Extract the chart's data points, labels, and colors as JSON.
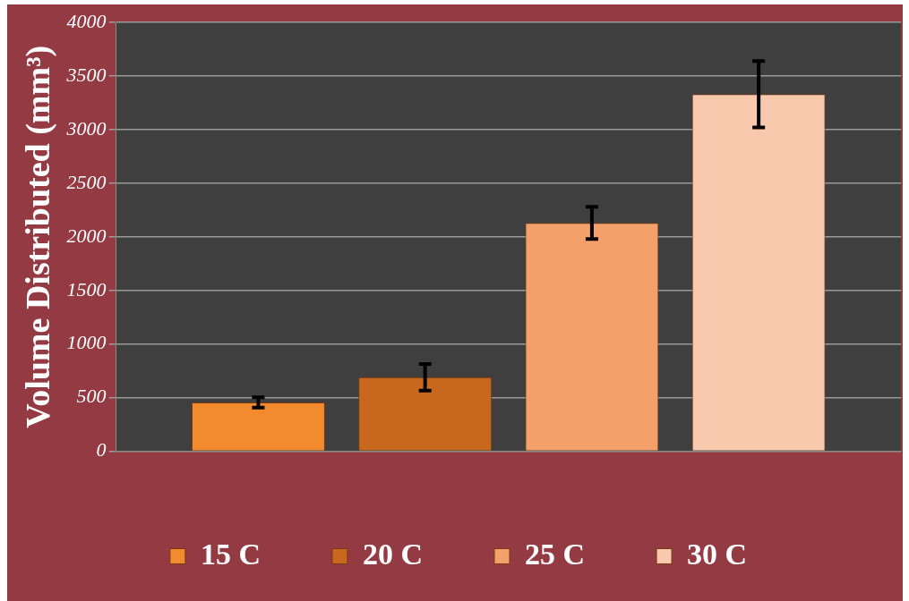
{
  "chart_data": {
    "type": "bar",
    "ylabel": "Volume Distributed (mm³)",
    "categories": [
      null
    ],
    "series": [
      {
        "name": "15 C",
        "color": "#f28a2e",
        "values": [
          455
        ],
        "errors": [
          48
        ]
      },
      {
        "name": "20 C",
        "color": "#c8681e",
        "values": [
          690
        ],
        "errors": [
          125
        ]
      },
      {
        "name": "25 C",
        "color": "#f4a06a",
        "values": [
          2130
        ],
        "errors": [
          150
        ]
      },
      {
        "name": "30 C",
        "color": "#f8c9ad",
        "values": [
          3330
        ],
        "errors": [
          310
        ]
      }
    ],
    "ylim": [
      0,
      4000
    ],
    "yticks": [
      0,
      500,
      1000,
      1500,
      2000,
      2500,
      3000,
      3500,
      4000
    ],
    "grid": "y",
    "legend": "bottom"
  }
}
